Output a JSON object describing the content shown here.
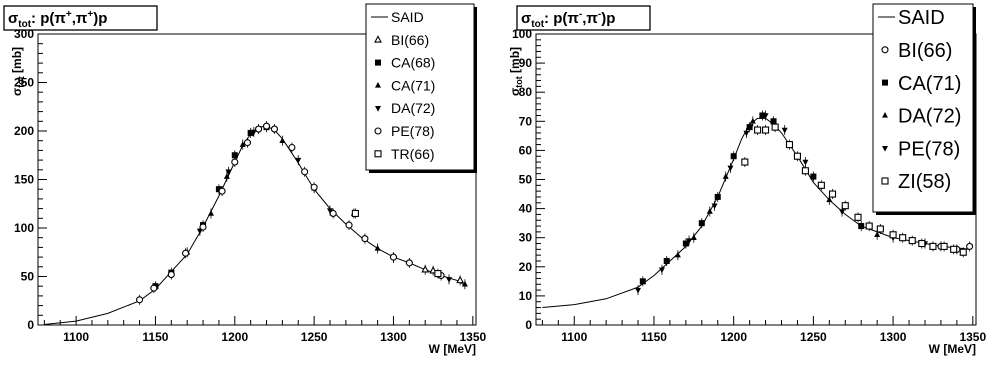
{
  "chart_data": [
    {
      "type": "scatter",
      "title": "σtot: p(π+,π+)p",
      "title_parts": {
        "sigma": "σ",
        "sigma_sub": "tot",
        "mid": ": p(π",
        "sup1": "+",
        "comma": ",π",
        "sup2": "+",
        "end": ")p"
      },
      "xlabel": "W [MeV]",
      "ylabel": "σtot [mb]",
      "ylabel_parts": {
        "sigma": "σ",
        "sub": "tot",
        "unit": " [mb]"
      },
      "xlim": [
        1076,
        1352
      ],
      "ylim": [
        0,
        300
      ],
      "xticks": [
        "1100",
        "1150",
        "1200",
        "1250",
        "1300",
        "1350"
      ],
      "xtick_values": [
        1100,
        1150,
        1200,
        1250,
        1300,
        1350
      ],
      "yticks": [
        "0",
        "50",
        "100",
        "150",
        "200",
        "250",
        "300"
      ],
      "ytick_values": [
        0,
        50,
        100,
        150,
        200,
        250,
        300
      ],
      "legend_placement": "top-right",
      "legend": [
        {
          "label": "SAID",
          "marker": "line"
        },
        {
          "label": "BI(66)",
          "marker": "open-triangle"
        },
        {
          "label": "CA(68)",
          "marker": "filled-square"
        },
        {
          "label": "CA(71)",
          "marker": "filled-triangle"
        },
        {
          "label": "DA(72)",
          "marker": "filled-triangle-down"
        },
        {
          "label": "PE(78)",
          "marker": "open-circle"
        },
        {
          "label": "TR(66)",
          "marker": "open-square"
        }
      ],
      "curve": {
        "name": "SAID",
        "x": [
          1080,
          1100,
          1120,
          1140,
          1150,
          1160,
          1170,
          1180,
          1190,
          1200,
          1205,
          1210,
          1215,
          1220,
          1225,
          1230,
          1240,
          1250,
          1260,
          1270,
          1280,
          1290,
          1300,
          1310,
          1320,
          1330,
          1340,
          1345
        ],
        "y": [
          0.5,
          4,
          12,
          25,
          37,
          55,
          73,
          101,
          133,
          168,
          185,
          197,
          204,
          205,
          201,
          192,
          167,
          140,
          120,
          104,
          90,
          79,
          70,
          64,
          57,
          51,
          46,
          41
        ]
      },
      "series": [
        {
          "name": "BI(66)",
          "marker": "open-triangle",
          "x": [
            1320,
            1325,
            1342
          ],
          "y": [
            57,
            56,
            46
          ]
        },
        {
          "name": "CA(68)",
          "marker": "filled-square",
          "x": [
            1150,
            1160,
            1180,
            1190,
            1200,
            1210,
            1220
          ],
          "y": [
            40,
            54,
            103,
            140,
            175,
            198,
            204
          ]
        },
        {
          "name": "CA(71)",
          "marker": "filled-triangle",
          "x": [
            1170,
            1185,
            1195,
            1205,
            1230,
            1250,
            1275,
            1290,
            1345
          ],
          "y": [
            75,
            115,
            153,
            186,
            190,
            141,
            115,
            79,
            42
          ]
        },
        {
          "name": "DA(72)",
          "marker": "filled-triangle-down",
          "x": [
            1178,
            1196,
            1212,
            1240,
            1260,
            1300,
            1335
          ],
          "y": [
            97,
            158,
            199,
            170,
            118,
            69,
            47
          ]
        },
        {
          "name": "PE(78)",
          "marker": "open-circle",
          "x": [
            1140,
            1149,
            1160,
            1169,
            1180,
            1192,
            1200,
            1208,
            1215,
            1220,
            1225,
            1236,
            1244,
            1250,
            1262,
            1272,
            1282,
            1300,
            1310,
            1330
          ],
          "y": [
            26,
            38,
            52,
            74,
            101,
            138,
            168,
            188,
            202,
            205,
            202,
            183,
            158,
            142,
            115,
            103,
            89,
            70,
            64,
            51
          ]
        },
        {
          "name": "TR(66)",
          "marker": "open-square",
          "x": [
            1276,
            1328
          ],
          "y": [
            115,
            53
          ]
        }
      ]
    },
    {
      "type": "scatter",
      "title": "σtot: p(π-,π-)p",
      "title_parts": {
        "sigma": "σ",
        "sigma_sub": "tot",
        "mid": ": p(π",
        "sup1": "-",
        "comma": ",π",
        "sup2": "-",
        "end": ")p"
      },
      "xlabel": "W [MeV]",
      "ylabel": "σtot [mb]",
      "ylabel_parts": {
        "sigma": "σ",
        "sub": "tot",
        "unit": " [mb]"
      },
      "xlim": [
        1076,
        1352
      ],
      "ylim": [
        0,
        100
      ],
      "xticks": [
        "1100",
        "1150",
        "1200",
        "1250",
        "1300",
        "1350"
      ],
      "xtick_values": [
        1100,
        1150,
        1200,
        1250,
        1300,
        1350
      ],
      "yticks": [
        "0",
        "10",
        "20",
        "30",
        "40",
        "50",
        "60",
        "70",
        "80",
        "90",
        "100"
      ],
      "ytick_values": [
        0,
        10,
        20,
        30,
        40,
        50,
        60,
        70,
        80,
        90,
        100
      ],
      "legend_placement": "top-right",
      "legend": [
        {
          "label": "SAID",
          "marker": "line"
        },
        {
          "label": "BI(66)",
          "marker": "open-circle"
        },
        {
          "label": "CA(71)",
          "marker": "filled-square"
        },
        {
          "label": "DA(72)",
          "marker": "filled-triangle"
        },
        {
          "label": "PE(78)",
          "marker": "filled-triangle-down"
        },
        {
          "label": "ZI(58)",
          "marker": "open-square"
        }
      ],
      "curve": {
        "name": "SAID",
        "x": [
          1080,
          1100,
          1120,
          1140,
          1150,
          1160,
          1170,
          1180,
          1190,
          1200,
          1205,
          1210,
          1215,
          1220,
          1225,
          1230,
          1240,
          1250,
          1260,
          1270,
          1280,
          1290,
          1300,
          1310,
          1320,
          1330,
          1340,
          1348
        ],
        "y": [
          6,
          7,
          9,
          13,
          17,
          22,
          27,
          34,
          44,
          57,
          64,
          69,
          71,
          71,
          69,
          66,
          58,
          49,
          43,
          38,
          34,
          32,
          30,
          29,
          28,
          27,
          26.5,
          26
        ]
      },
      "series": [
        {
          "name": "BI(66)",
          "marker": "open-circle",
          "x": [
            1330,
            1340,
            1348
          ],
          "y": [
            27,
            26,
            27
          ]
        },
        {
          "name": "CA(71)",
          "marker": "filled-square",
          "x": [
            1143,
            1158,
            1170,
            1180,
            1190,
            1200,
            1210,
            1218,
            1225,
            1250,
            1280
          ],
          "y": [
            15,
            22,
            28,
            35,
            44,
            58,
            68,
            72,
            70,
            51,
            34
          ]
        },
        {
          "name": "DA(72)",
          "marker": "filled-triangle",
          "x": [
            1165,
            1175,
            1185,
            1195,
            1212,
            1260,
            1290
          ],
          "y": [
            24,
            30,
            39,
            51,
            70,
            43,
            31
          ]
        },
        {
          "name": "PE(78)",
          "marker": "filled-triangle-down",
          "x": [
            1140,
            1155,
            1172,
            1188,
            1198,
            1208,
            1220,
            1232,
            1245,
            1268,
            1300,
            1320
          ],
          "y": [
            12,
            19,
            29,
            41,
            54,
            66,
            72,
            67,
            56,
            39,
            30,
            28
          ]
        },
        {
          "name": "ZI(58)",
          "marker": "open-square",
          "x": [
            1207,
            1215,
            1220,
            1226,
            1235,
            1240,
            1245,
            1255,
            1262,
            1270,
            1278,
            1285,
            1292,
            1300,
            1306,
            1312,
            1318,
            1325,
            1332,
            1338,
            1344
          ],
          "y": [
            56,
            67,
            67,
            68,
            62,
            58,
            53,
            48,
            45,
            41,
            37,
            34,
            33,
            31,
            30,
            29,
            28,
            27,
            27,
            26,
            25
          ]
        }
      ]
    }
  ]
}
